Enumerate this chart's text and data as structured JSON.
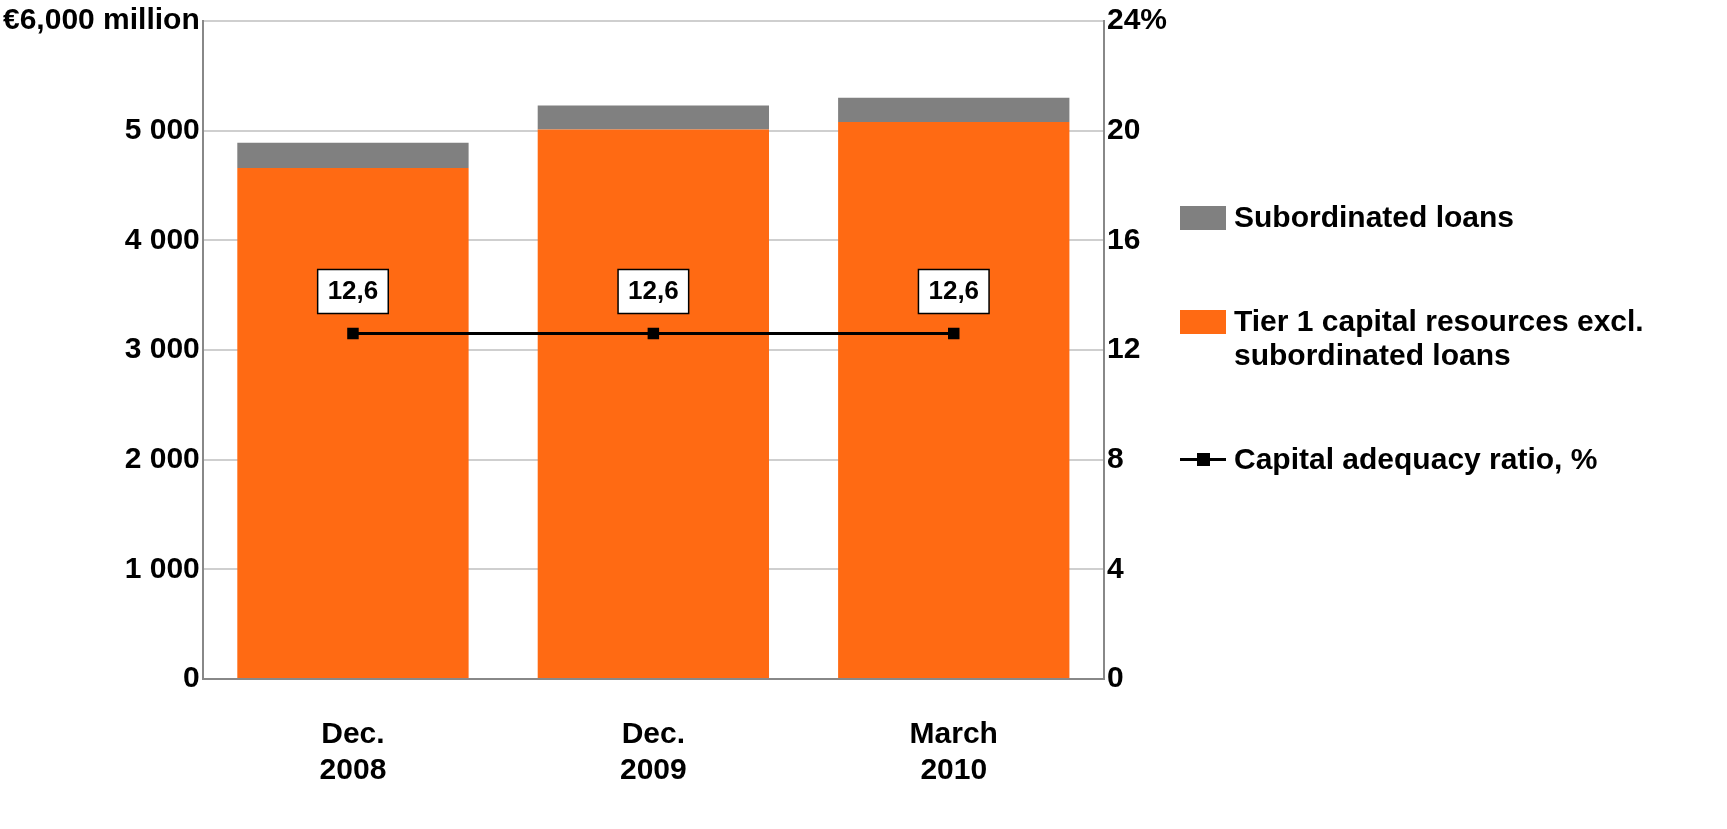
{
  "chart_data": {
    "type": "bar",
    "stacked": true,
    "categories": [
      "Dec. 2008",
      "Dec. 2009",
      "March 2010"
    ],
    "series": [
      {
        "name": "Tier 1 capital resources excl. subordinated loans",
        "color": "#ff6a13",
        "values": [
          4660,
          5010,
          5080
        ]
      },
      {
        "name": "Subordinated loans",
        "color": "#808080",
        "values": [
          230,
          220,
          220
        ]
      },
      {
        "name": "Capital adequacy ratio, %",
        "type": "line",
        "axis": "y2",
        "color": "#000000",
        "values": [
          12.6,
          12.6,
          12.6
        ],
        "value_labels": [
          "12,6",
          "12,6",
          "12,6"
        ]
      }
    ],
    "ylim": [
      0,
      6000
    ],
    "yticks": [
      0,
      {
        "value": 1000,
        "label": "1 000"
      },
      {
        "value": 2000,
        "label": "2 000"
      },
      {
        "value": 3000,
        "label": "3 000"
      },
      {
        "value": 4000,
        "label": "4 000"
      },
      {
        "value": 5000,
        "label": "5 000"
      },
      {
        "value": 6000,
        "label": "€6,000 million"
      }
    ],
    "y2lim": [
      0,
      24
    ],
    "y2ticks": [
      0,
      4,
      8,
      12,
      16,
      20,
      {
        "value": 24,
        "label": "24%"
      }
    ],
    "grid": "y",
    "legend": "right",
    "marker": "square",
    "line_style": "solid"
  }
}
